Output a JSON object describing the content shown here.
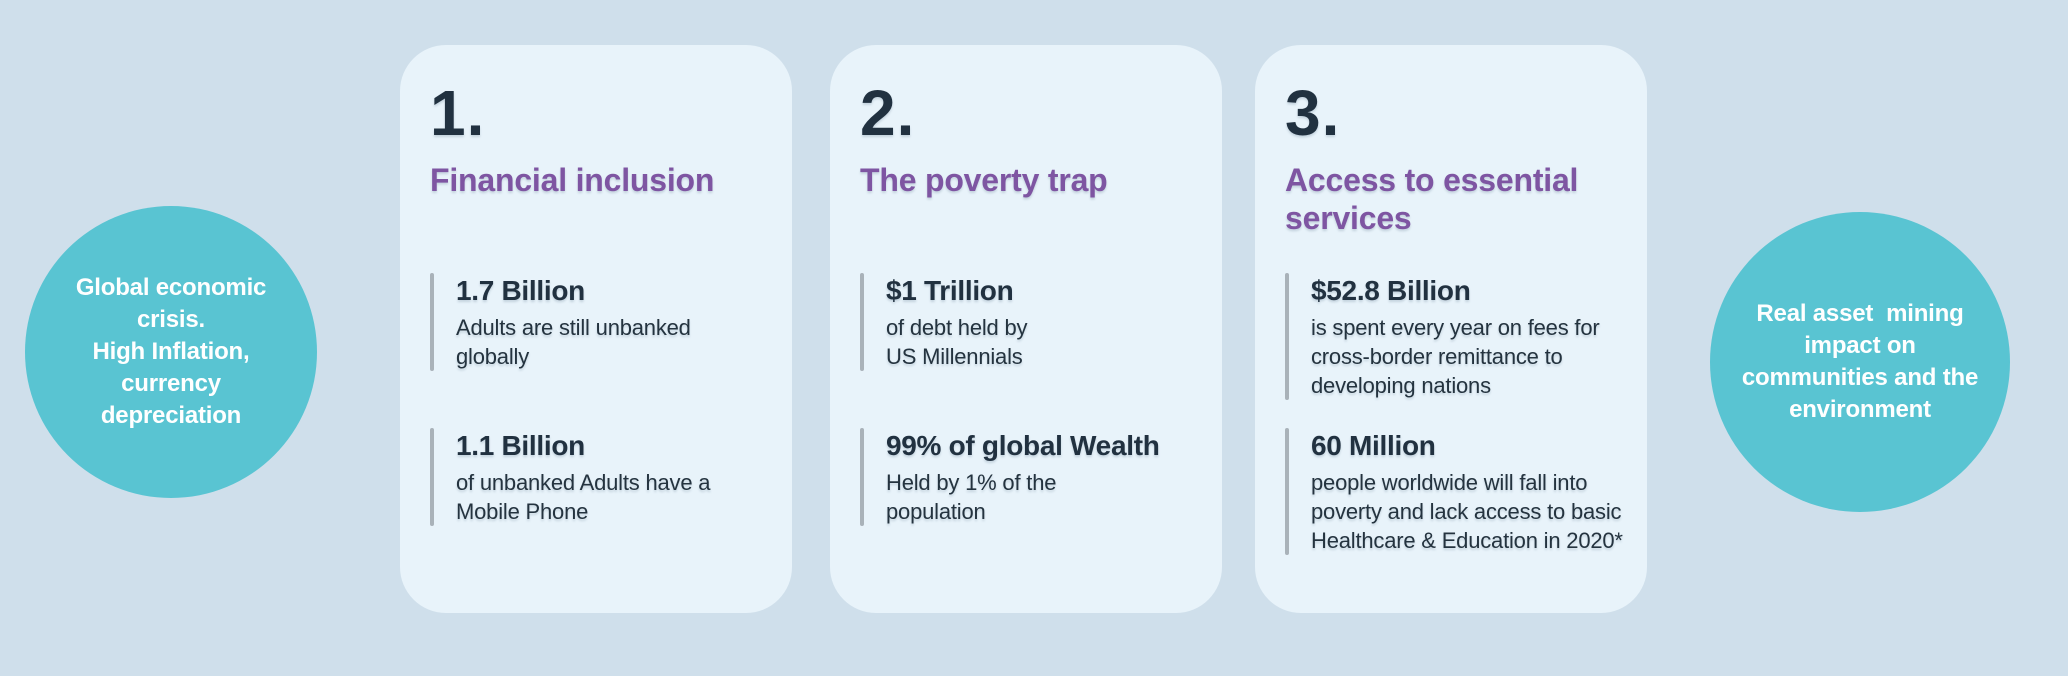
{
  "theme": {
    "page_background": "#cfdfeb",
    "card_background": "#e8f3fa",
    "accent_teal": "#59c4d2",
    "accent_purple": "#7e55a2",
    "text_dark": "#213140",
    "accent_bar_gray": "#a9b2b9"
  },
  "circles": {
    "left": {
      "text": "Global economic\ncrisis.\nHigh Inflation,\ncurrency\ndepreciation"
    },
    "right": {
      "text": "Real asset  mining\nimpact on\ncommunities and the\nenvironment"
    }
  },
  "cards": [
    {
      "number": "1.",
      "title": "Financial inclusion",
      "stats": [
        {
          "value": "1.7 Billion",
          "description": "Adults are still unbanked\nglobally"
        },
        {
          "value": "1.1 Billion",
          "description": "of unbanked Adults have a\nMobile Phone"
        }
      ]
    },
    {
      "number": "2.",
      "title": "The poverty trap",
      "stats": [
        {
          "value": "$1 Trillion",
          "description": "of debt held by\nUS Millennials"
        },
        {
          "value": "99% of global Wealth",
          "description": "Held by 1% of the\npopulation"
        }
      ]
    },
    {
      "number": "3.",
      "title": "Access to essential\nservices",
      "stats": [
        {
          "value": "$52.8 Billion",
          "description": "is spent every year on fees for\ncross-border remittance to\ndeveloping nations"
        },
        {
          "value": "60 Million",
          "description": "people worldwide will fall into\npoverty and lack access to basic\nHealthcare & Education in 2020*"
        }
      ]
    }
  ]
}
